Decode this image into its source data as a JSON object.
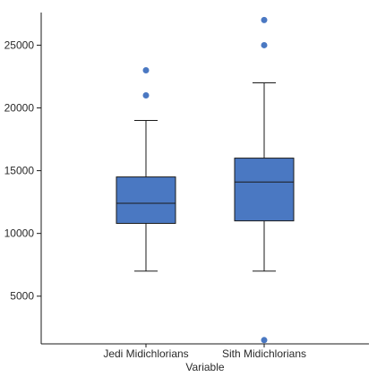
{
  "chart_data": {
    "type": "box",
    "title": "",
    "xlabel": "Variable",
    "ylabel": "",
    "ylim": [
      1200,
      27600
    ],
    "yticks": [
      5000,
      10000,
      15000,
      20000,
      25000
    ],
    "ytick_labels": [
      "5000",
      "10000",
      "15000",
      "20000",
      "25000"
    ],
    "categories": [
      "Jedi Midichlorians",
      "Sith Midichlorians"
    ],
    "boxes": [
      {
        "category": "Jedi Midichlorians",
        "whisker_low": 7000,
        "q1": 10800,
        "median": 12400,
        "q3": 14500,
        "whisker_high": 19000,
        "outliers": [
          21000,
          23000
        ]
      },
      {
        "category": "Sith Midichlorians",
        "whisker_low": 7000,
        "q1": 11000,
        "median": 14100,
        "q3": 16000,
        "whisker_high": 22000,
        "outliers": [
          1500,
          25000,
          27000
        ]
      }
    ],
    "colors": {
      "box_fill": "#4a78c2",
      "box_stroke": "#1a1a1a",
      "outlier": "#4a78c2",
      "axis": "#1a1a1a"
    },
    "grid": false,
    "legend": "none"
  }
}
